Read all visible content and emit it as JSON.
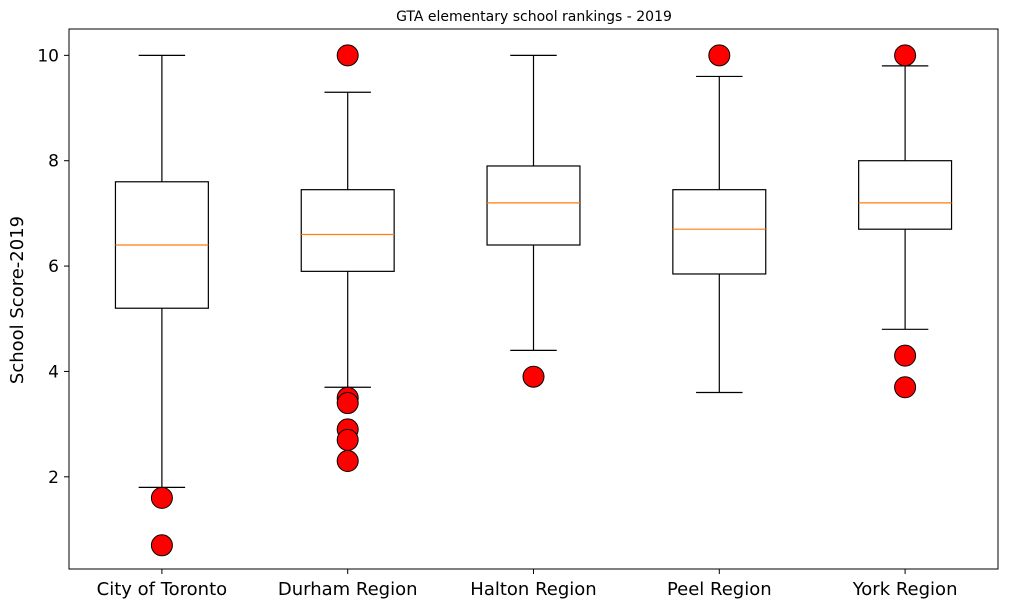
{
  "chart_data": {
    "type": "box",
    "title": "GTA elementary school rankings - 2019",
    "xlabel": "",
    "ylabel": "School Score-2019",
    "ylim": [
      0.25,
      10.5
    ],
    "yticks": [
      2,
      4,
      6,
      8,
      10
    ],
    "grid": false,
    "colors": {
      "box": "#000000",
      "median": "#ff7f0e",
      "outlier_fill": "#ff0000",
      "outlier_edge": "#000000"
    },
    "categories": [
      "City of Toronto",
      "Durham Region",
      "Halton Region",
      "Peel Region",
      "York Region"
    ],
    "boxes": [
      {
        "whisker_low": 1.8,
        "q1": 5.2,
        "median": 6.4,
        "q3": 7.6,
        "whisker_high": 10.0,
        "outliers": [
          1.6,
          0.7
        ]
      },
      {
        "whisker_low": 3.7,
        "q1": 5.9,
        "median": 6.6,
        "q3": 7.45,
        "whisker_high": 9.3,
        "outliers": [
          10.0,
          3.5,
          3.4,
          2.9,
          2.7,
          2.3
        ]
      },
      {
        "whisker_low": 4.4,
        "q1": 6.4,
        "median": 7.2,
        "q3": 7.9,
        "whisker_high": 10.0,
        "outliers": [
          3.9
        ]
      },
      {
        "whisker_low": 3.6,
        "q1": 5.85,
        "median": 6.7,
        "q3": 7.45,
        "whisker_high": 9.6,
        "outliers": [
          10.0
        ]
      },
      {
        "whisker_low": 4.8,
        "q1": 6.7,
        "median": 7.2,
        "q3": 8.0,
        "whisker_high": 9.8,
        "outliers": [
          10.0,
          4.3,
          3.7
        ]
      }
    ]
  }
}
